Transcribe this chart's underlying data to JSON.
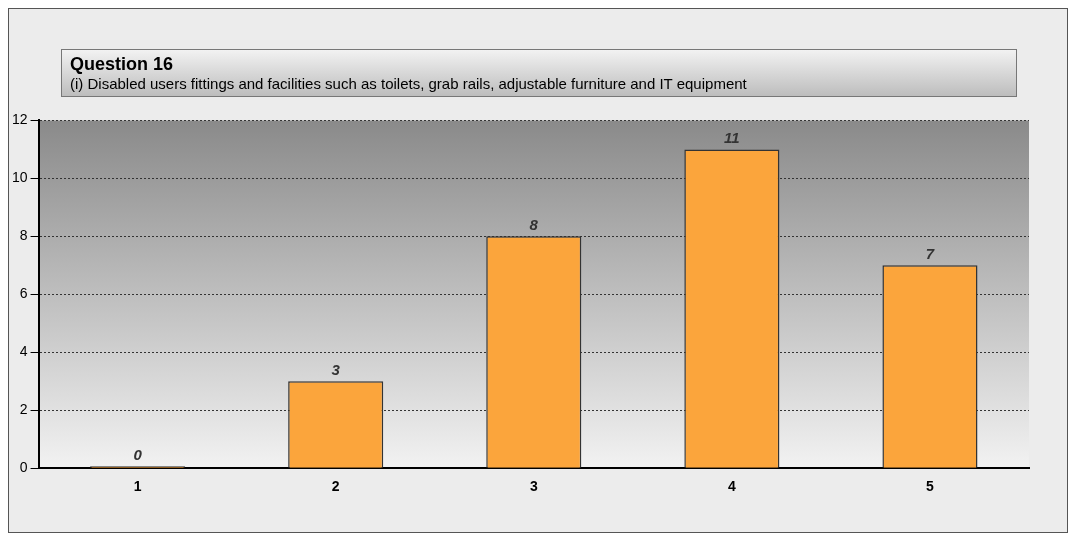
{
  "chart_data": {
    "type": "bar",
    "title": "Question 16",
    "subtitle": "(i) Disabled users fittings and facilities such as toilets, grab rails, adjustable furniture and IT equipment",
    "categories": [
      "1",
      "2",
      "3",
      "4",
      "5"
    ],
    "values": [
      0,
      3,
      8,
      11,
      7
    ],
    "color": "#fba53c",
    "ylim": [
      0,
      12
    ],
    "yticks": [
      0,
      2,
      4,
      6,
      8,
      10,
      12
    ],
    "grid": "y",
    "legend": false,
    "data_labels": true
  }
}
